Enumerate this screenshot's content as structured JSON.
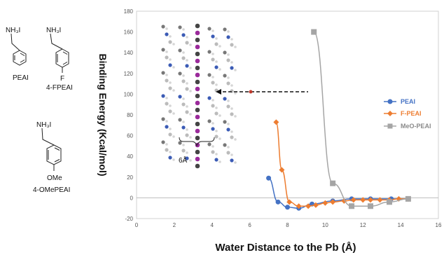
{
  "molecules": {
    "pea": {
      "group": "NH₃I",
      "name": "PEAI"
    },
    "fpea": {
      "group": "NH₃I",
      "substituent": "F",
      "name": "4-FPEAI"
    },
    "meopea": {
      "group": "NH₃I",
      "substituent": "OMe",
      "name": "4-OMePEAI"
    }
  },
  "inset": {
    "distance_label": "6Å"
  },
  "chart_data": {
    "type": "line",
    "xlabel": "Water Distance to the Pb (Å)",
    "ylabel": "Binding Energy (Kcal/mol)",
    "xlim": [
      0,
      16
    ],
    "ylim": [
      -20,
      180
    ],
    "xticks": [
      0,
      2,
      4,
      6,
      8,
      10,
      12,
      14,
      16
    ],
    "yticks": [
      -20,
      0,
      20,
      40,
      60,
      80,
      100,
      120,
      140,
      160,
      180
    ],
    "grid": false,
    "legend_position": "right",
    "series": [
      {
        "name": "PEAI",
        "color": "#4472C4",
        "marker": "circle",
        "x": [
          7.0,
          7.5,
          8.0,
          8.6,
          9.3,
          10.4,
          11.4,
          12.4,
          13.5,
          14.4
        ],
        "y": [
          19,
          -4,
          -9,
          -10,
          -6,
          -3,
          -1,
          -1,
          -1,
          -1
        ]
      },
      {
        "name": "F-PEAI",
        "color": "#ED7D31",
        "marker": "diamond",
        "x": [
          7.4,
          7.7,
          8.1,
          8.6,
          9.1,
          9.5,
          10.0,
          10.4,
          11.0,
          11.5,
          12.0,
          12.4,
          12.9,
          13.4,
          13.9,
          14.4
        ],
        "y": [
          73,
          27,
          -4,
          -8,
          -8,
          -7,
          -5,
          -4,
          -3,
          -2,
          -2,
          -2,
          -2,
          -2,
          -1,
          -1
        ]
      },
      {
        "name": "MeO-PEAI",
        "color": "#A5A5A5",
        "marker": "square",
        "x": [
          9.4,
          10.4,
          11.4,
          12.4,
          13.4,
          14.4
        ],
        "y": [
          160,
          14,
          -8,
          -8,
          -4,
          -1
        ]
      }
    ]
  }
}
